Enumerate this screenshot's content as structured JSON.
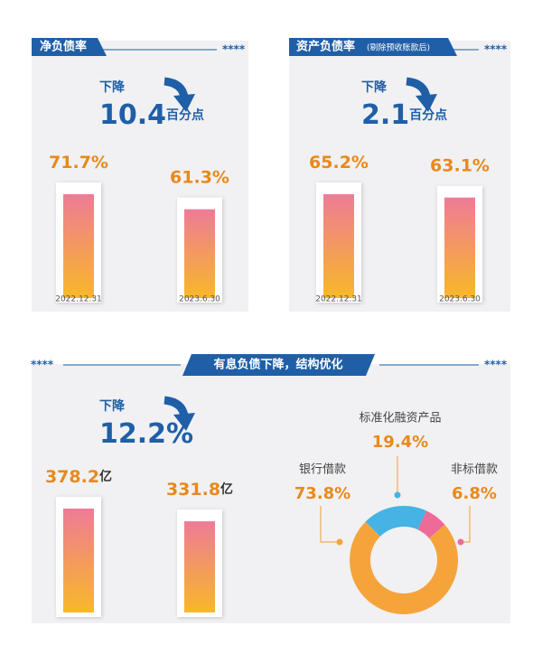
{
  "chart_data": [
    {
      "type": "bar",
      "title": "净负债率",
      "decoration": "****",
      "annotation": {
        "label": "下降",
        "change": 10.4,
        "unit": "百分点"
      },
      "categories": [
        "2022.12.31",
        "2023.6.30"
      ],
      "values": [
        71.7,
        61.3
      ],
      "value_labels": [
        "71.7%",
        "61.3%"
      ],
      "colors": [
        "#ee7b97",
        "#f8b828"
      ]
    },
    {
      "type": "bar",
      "title": "资产负债率",
      "subtitle": "(剔除预收账款后)",
      "decoration": "****",
      "annotation": {
        "label": "下降",
        "change": 2.1,
        "unit": "百分点"
      },
      "categories": [
        "2022.12.31",
        "2023.6.30"
      ],
      "values": [
        65.2,
        63.1
      ],
      "value_labels": [
        "65.2%",
        "63.1%"
      ],
      "colors": [
        "#ee7b97",
        "#f8b828"
      ]
    },
    {
      "type": "bar",
      "title": "有息负债下降，结构优化",
      "decoration": "****",
      "annotation": {
        "label": "下降",
        "change": {
          "value": 12.2,
          "label": "12.2%"
        }
      },
      "categories": [
        null,
        null
      ],
      "values": [
        378.2,
        331.8
      ],
      "unit": "亿",
      "colors": [
        "#ee7b97",
        "#f8b828"
      ]
    },
    {
      "type": "pie",
      "categories": [
        "标准化融资产品",
        "非标借款",
        "银行借款"
      ],
      "values": [
        19.4,
        6.8,
        73.8
      ],
      "value_labels": [
        "19.4%",
        "6.8%",
        "73.8%"
      ],
      "colors": [
        "#45b3e4",
        "#ee6a98",
        "#f5a43c"
      ]
    }
  ]
}
